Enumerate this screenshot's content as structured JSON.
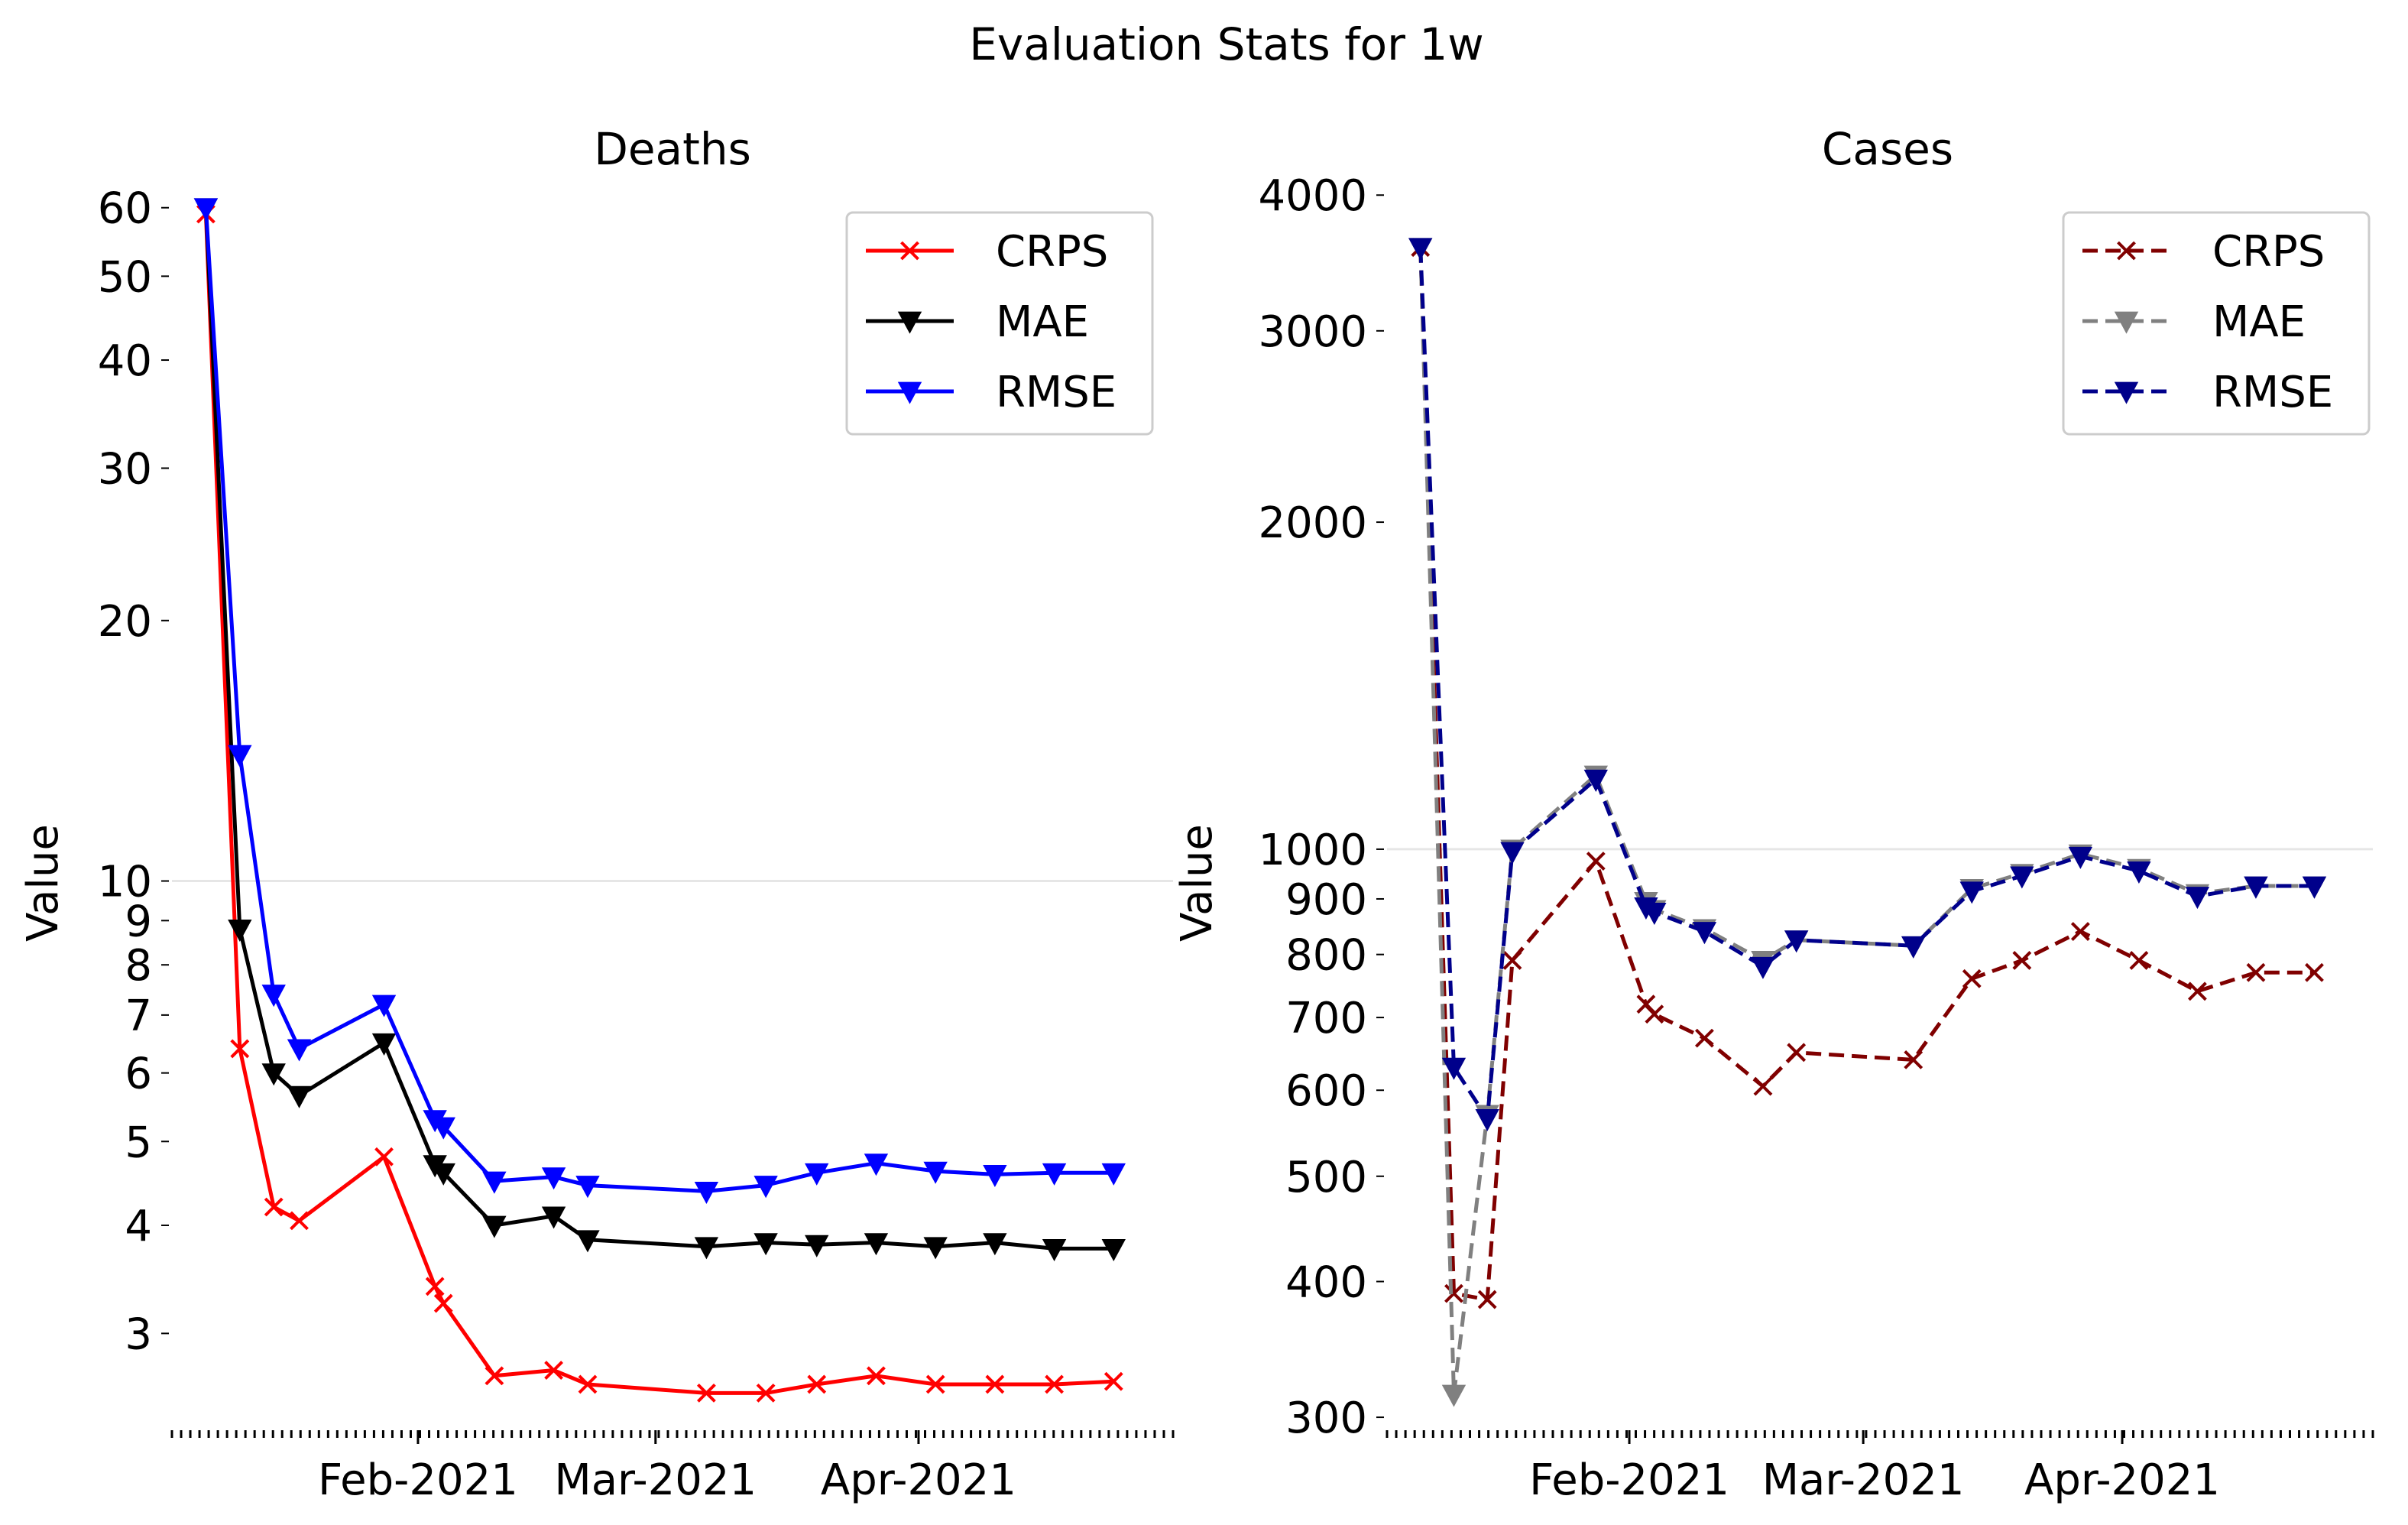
{
  "figure": {
    "title": "Evaluation Stats for 1w"
  },
  "chart_data": [
    {
      "type": "line",
      "title": "Deaths",
      "ylabel": "Value",
      "xlabel": "",
      "yscale": "log",
      "ylim": [
        2.3,
        64
      ],
      "xlim": [
        "2021-01-03",
        "2021-05-01"
      ],
      "grid_lines": [
        10
      ],
      "yticks": [
        3,
        4,
        5,
        6,
        7,
        8,
        9,
        10,
        20,
        30,
        40,
        50,
        60
      ],
      "xticks": [
        {
          "date": "2021-02-01",
          "label": "Feb-2021"
        },
        {
          "date": "2021-03-01",
          "label": "Mar-2021"
        },
        {
          "date": "2021-04-01",
          "label": "Apr-2021"
        }
      ],
      "legend_position": "top-right",
      "x": [
        "2021-01-07",
        "2021-01-11",
        "2021-01-15",
        "2021-01-18",
        "2021-01-28",
        "2021-02-03",
        "2021-02-04",
        "2021-02-10",
        "2021-02-17",
        "2021-02-21",
        "2021-03-07",
        "2021-03-14",
        "2021-03-20",
        "2021-03-27",
        "2021-04-03",
        "2021-04-10",
        "2021-04-17",
        "2021-04-24"
      ],
      "series": [
        {
          "name": "CRPS",
          "color": "#ff0000",
          "marker": "x",
          "dash": false,
          "values": [
            59,
            6.4,
            4.2,
            4.05,
            4.8,
            3.4,
            3.25,
            2.68,
            2.72,
            2.62,
            2.56,
            2.56,
            2.62,
            2.68,
            2.62,
            2.62,
            2.62,
            2.64
          ]
        },
        {
          "name": "MAE",
          "color": "#000000",
          "marker": "v",
          "dash": false,
          "values": [
            60,
            8.8,
            6.0,
            5.65,
            6.5,
            4.7,
            4.6,
            4.0,
            4.1,
            3.85,
            3.78,
            3.82,
            3.8,
            3.82,
            3.78,
            3.82,
            3.76,
            3.76
          ]
        },
        {
          "name": "RMSE",
          "color": "#0000ff",
          "marker": "v",
          "dash": false,
          "values": [
            60,
            14,
            7.4,
            6.4,
            7.2,
            5.3,
            5.2,
            4.5,
            4.55,
            4.45,
            4.38,
            4.45,
            4.6,
            4.72,
            4.62,
            4.58,
            4.6,
            4.6
          ]
        }
      ]
    },
    {
      "type": "line",
      "title": "Cases",
      "ylabel": "Value",
      "xlabel": "",
      "yscale": "log",
      "ylim": [
        290,
        4100
      ],
      "xlim": [
        "2021-01-03",
        "2021-05-01"
      ],
      "grid_lines": [
        1000
      ],
      "yticks": [
        300,
        400,
        500,
        600,
        700,
        800,
        900,
        1000,
        2000,
        3000,
        4000
      ],
      "xticks": [
        {
          "date": "2021-02-01",
          "label": "Feb-2021"
        },
        {
          "date": "2021-03-01",
          "label": "Mar-2021"
        },
        {
          "date": "2021-04-01",
          "label": "Apr-2021"
        }
      ],
      "legend_position": "top-right",
      "x": [
        "2021-01-07",
        "2021-01-11",
        "2021-01-15",
        "2021-01-18",
        "2021-01-28",
        "2021-02-03",
        "2021-02-04",
        "2021-02-10",
        "2021-02-17",
        "2021-02-21",
        "2021-03-07",
        "2021-03-14",
        "2021-03-20",
        "2021-03-27",
        "2021-04-03",
        "2021-04-10",
        "2021-04-17",
        "2021-04-24"
      ],
      "series": [
        {
          "name": "CRPS",
          "color": "#800000",
          "marker": "x",
          "dash": true,
          "values": [
            3580,
            390,
            385,
            790,
            975,
            720,
            705,
            670,
            605,
            650,
            640,
            760,
            790,
            840,
            790,
            740,
            770,
            770
          ]
        },
        {
          "name": "MAE",
          "color": "#808080",
          "marker": "v",
          "dash": true,
          "values": [
            3580,
            315,
            570,
            1000,
            1170,
            895,
            880,
            845,
            790,
            825,
            815,
            920,
            950,
            990,
            960,
            910,
            925,
            925
          ]
        },
        {
          "name": "RMSE",
          "color": "#00008b",
          "marker": "v",
          "dash": true,
          "values": [
            3580,
            630,
            565,
            995,
            1160,
            885,
            875,
            840,
            780,
            825,
            815,
            915,
            945,
            985,
            955,
            905,
            925,
            925
          ]
        }
      ]
    }
  ]
}
